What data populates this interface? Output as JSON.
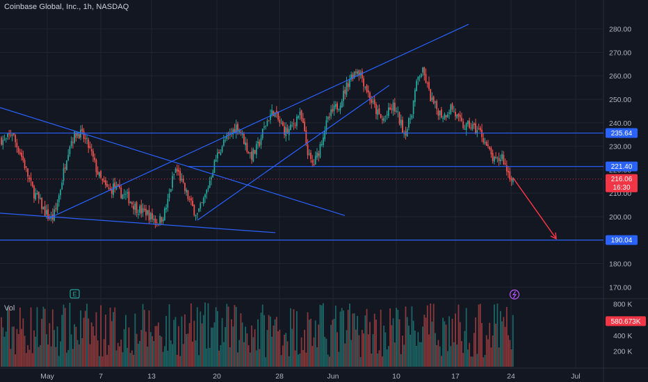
{
  "header": {
    "title": "Coinbase Global, Inc., 1h, NASDAQ"
  },
  "volume_panel": {
    "label": "Vol"
  },
  "colors": {
    "background": "#131722",
    "grid": "#1f2430",
    "up": "#26a69a",
    "down": "#ef5350",
    "trendline": "#2962ff",
    "arrow": "#f23645",
    "axis_text": "#b2b5be",
    "price_badge": "#f23645",
    "level_badge": "#2962ff"
  },
  "icons": {
    "earnings_marker": "earnings-icon",
    "dividend_marker": "split-lightning-icon"
  },
  "chart_data": {
    "type": "candlestick",
    "title": "Coinbase Global, Inc., 1h, NASDAQ",
    "price_axis": {
      "ylim": [
        163,
        287
      ],
      "ticks": [
        170,
        180,
        190,
        200,
        210,
        220,
        230,
        240,
        250,
        260,
        270,
        280
      ],
      "tick_labels": [
        "170.00",
        "180.00",
        "190.00",
        "200.00",
        "210.00",
        "220.00",
        "230.00",
        "240.00",
        "250.00",
        "260.00",
        "270.00",
        "280.00"
      ]
    },
    "time_axis": {
      "tick_labels": [
        "May",
        "7",
        "13",
        "20",
        "28",
        "Jun",
        "10",
        "17",
        "24",
        "Jul"
      ]
    },
    "volume_axis": {
      "ylim": [
        0,
        850000
      ],
      "ticks": [
        200000,
        400000,
        600000,
        800000
      ],
      "tick_labels": [
        "200 K",
        "400 K",
        "600 K",
        "800 K"
      ]
    },
    "price_path": [
      233,
      232,
      234,
      236,
      231,
      228,
      224,
      219,
      214,
      210,
      208,
      205,
      202,
      200,
      199,
      203,
      210,
      218,
      226,
      232,
      234,
      236,
      235,
      233,
      230,
      226,
      221,
      217,
      214,
      212,
      211,
      213,
      211,
      210,
      209,
      208,
      206,
      204,
      203,
      202,
      202,
      200,
      199,
      198,
      199,
      202,
      207,
      215,
      220,
      218,
      213,
      210,
      206,
      203,
      201,
      204,
      208,
      213,
      219,
      224,
      228,
      231,
      233,
      235,
      237,
      239,
      236,
      232,
      228,
      226,
      228,
      231,
      236,
      240,
      243,
      245,
      242,
      239,
      237,
      236,
      238,
      241,
      244,
      240,
      231,
      224,
      222,
      226,
      231,
      237,
      241,
      244,
      246,
      248,
      251,
      255,
      259,
      261,
      263,
      261,
      257,
      253,
      249,
      246,
      243,
      241,
      243,
      245,
      247,
      244,
      240,
      236,
      238,
      244,
      253,
      260,
      262,
      258,
      252,
      248,
      246,
      244,
      243,
      245,
      247,
      244,
      241,
      239,
      238,
      239,
      238,
      237,
      236,
      233,
      229,
      226,
      223,
      224,
      226,
      221,
      218,
      216
    ],
    "current_price": {
      "value": 216.06,
      "label": "216.06",
      "countdown": "16:30"
    },
    "horizontal_levels": [
      {
        "value": 235.64,
        "label": "235.64"
      },
      {
        "value": 221.4,
        "label": "221.40"
      },
      {
        "value": 190.04,
        "label": "190.04"
      }
    ],
    "current_volume": {
      "value": 580673,
      "label": "580.673K"
    }
  }
}
